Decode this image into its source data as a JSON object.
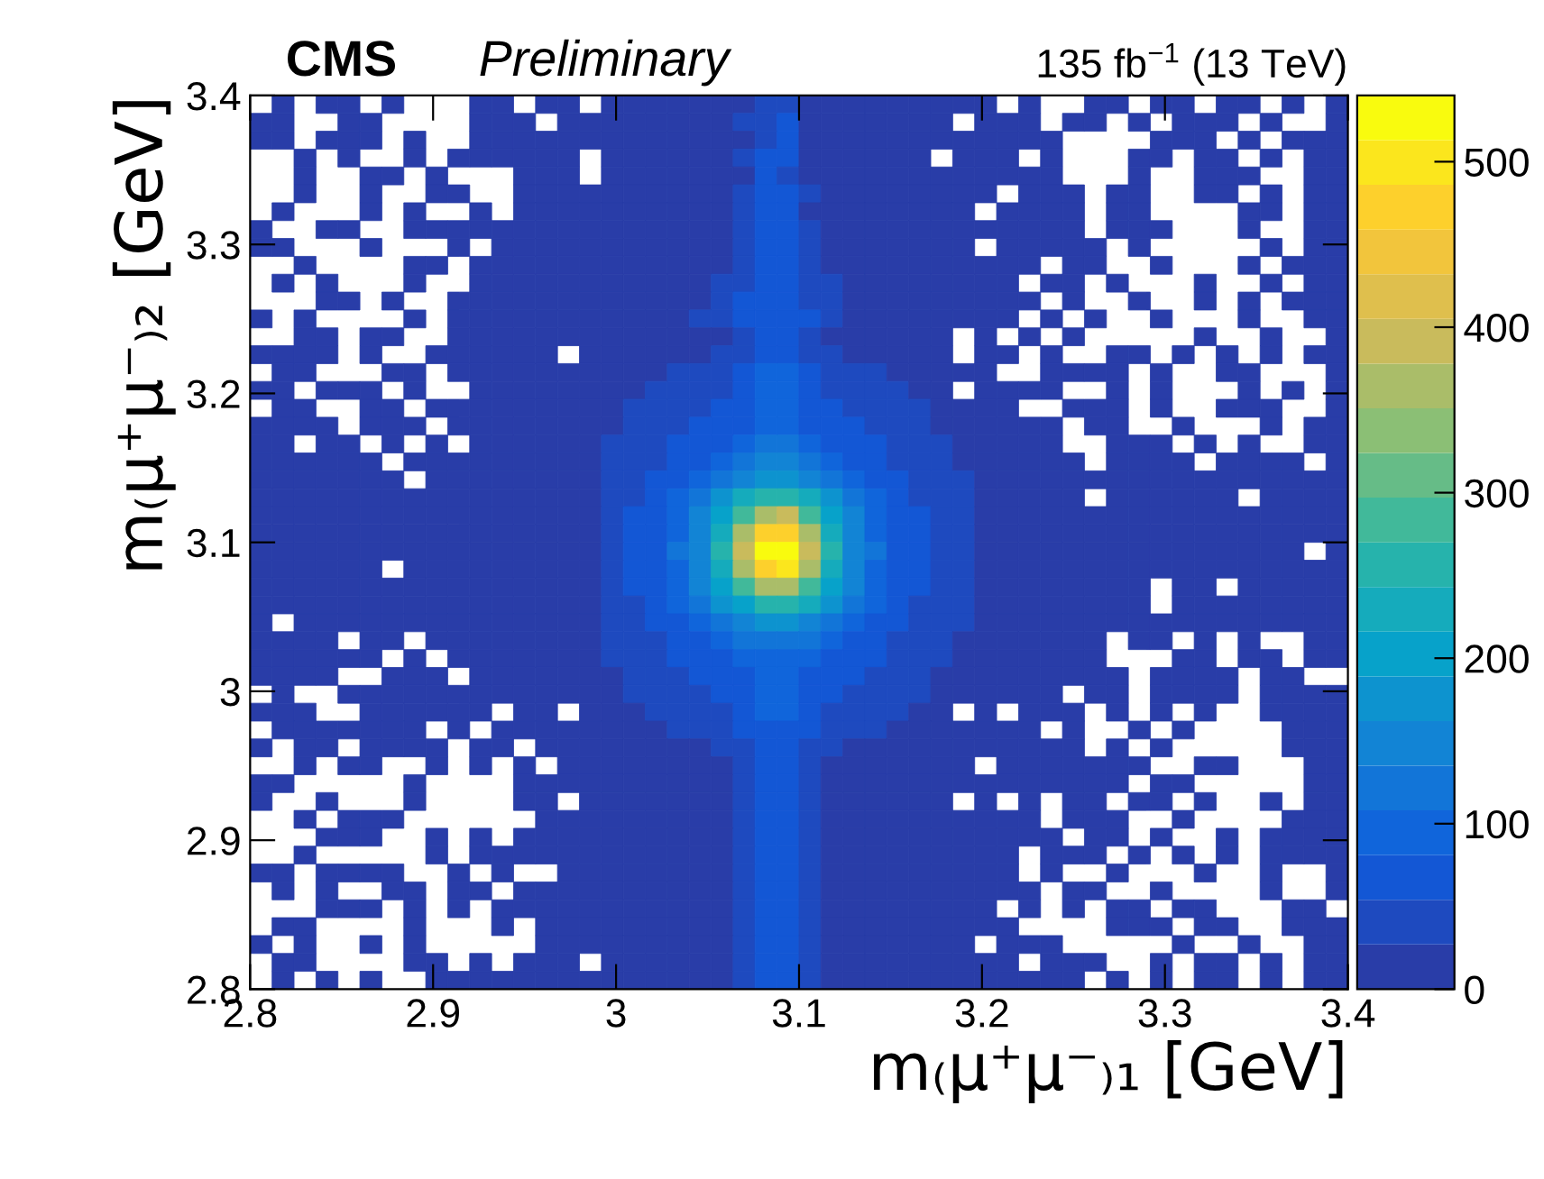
{
  "chart_data": {
    "type": "heatmap",
    "title": "CMS",
    "subtitle": "Preliminary",
    "annotations": [
      "135 fb$^{−1}$ (13 TeV)"
    ],
    "xlabel": "m₍μ⁺μ⁻₎₁ [GeV]",
    "ylabel": "m₍μ⁺μ⁻₎₂ [GeV]",
    "xlim": [
      2.8,
      3.4
    ],
    "ylim": [
      2.8,
      3.4
    ],
    "xticks": [
      2.8,
      2.9,
      3,
      3.1,
      3.2,
      3.3,
      3.4
    ],
    "yticks": [
      2.8,
      2.9,
      3,
      3.1,
      3.2,
      3.3,
      3.4
    ],
    "clim": [
      0,
      540
    ],
    "cticks": [
      0,
      100,
      200,
      300,
      400,
      500
    ],
    "grid": false,
    "cells": [
      [
        null,
        10,
        null,
        10,
        10,
        null,
        10,
        null,
        null,
        null,
        10,
        10,
        null,
        10,
        10,
        null,
        10,
        10,
        10,
        10,
        10,
        10,
        10,
        40,
        45,
        10,
        10,
        10,
        10,
        10,
        10,
        10,
        10,
        10,
        null,
        10,
        null,
        null,
        10,
        10,
        null,
        10,
        10,
        null,
        10,
        10,
        null,
        10,
        null,
        10
      ],
      [
        10,
        10,
        null,
        null,
        10,
        10,
        null,
        null,
        null,
        null,
        10,
        10,
        10,
        null,
        10,
        10,
        10,
        10,
        10,
        10,
        10,
        10,
        30,
        50,
        60,
        10,
        10,
        10,
        10,
        10,
        10,
        10,
        null,
        10,
        10,
        10,
        null,
        10,
        10,
        null,
        10,
        null,
        10,
        10,
        10,
        null,
        10,
        null,
        null,
        10
      ],
      [
        10,
        10,
        null,
        10,
        10,
        10,
        null,
        10,
        null,
        null,
        10,
        10,
        10,
        10,
        10,
        10,
        10,
        10,
        10,
        10,
        10,
        10,
        10,
        45,
        55,
        10,
        10,
        10,
        10,
        10,
        10,
        10,
        10,
        10,
        10,
        10,
        10,
        null,
        null,
        null,
        null,
        10,
        10,
        10,
        null,
        10,
        null,
        10,
        10,
        10
      ],
      [
        null,
        null,
        10,
        null,
        10,
        null,
        null,
        10,
        null,
        10,
        10,
        10,
        10,
        10,
        10,
        null,
        10,
        10,
        10,
        10,
        10,
        10,
        30,
        55,
        55,
        10,
        10,
        10,
        10,
        10,
        10,
        null,
        10,
        10,
        10,
        null,
        10,
        null,
        null,
        null,
        10,
        10,
        null,
        10,
        10,
        null,
        10,
        null,
        10,
        10
      ],
      [
        null,
        null,
        10,
        null,
        null,
        10,
        10,
        null,
        10,
        null,
        null,
        null,
        10,
        10,
        10,
        null,
        10,
        10,
        10,
        10,
        10,
        10,
        10,
        55,
        50,
        10,
        10,
        10,
        10,
        10,
        10,
        10,
        10,
        10,
        10,
        10,
        10,
        null,
        null,
        null,
        10,
        null,
        null,
        10,
        10,
        10,
        null,
        null,
        10,
        10
      ],
      [
        null,
        null,
        10,
        null,
        null,
        10,
        null,
        null,
        10,
        10,
        null,
        null,
        10,
        10,
        10,
        10,
        10,
        10,
        10,
        10,
        10,
        10,
        35,
        60,
        60,
        30,
        10,
        10,
        10,
        10,
        10,
        10,
        10,
        10,
        null,
        10,
        10,
        10,
        null,
        10,
        10,
        null,
        null,
        10,
        10,
        null,
        10,
        null,
        10,
        10
      ],
      [
        null,
        10,
        null,
        null,
        null,
        10,
        null,
        10,
        null,
        null,
        10,
        null,
        10,
        10,
        10,
        10,
        10,
        10,
        10,
        10,
        10,
        10,
        30,
        55,
        60,
        10,
        10,
        10,
        10,
        10,
        10,
        10,
        10,
        null,
        10,
        10,
        10,
        10,
        null,
        10,
        10,
        null,
        null,
        null,
        null,
        10,
        10,
        null,
        10,
        10
      ],
      [
        10,
        null,
        null,
        10,
        10,
        null,
        null,
        10,
        10,
        10,
        10,
        10,
        10,
        10,
        10,
        10,
        10,
        10,
        10,
        10,
        10,
        10,
        40,
        60,
        60,
        35,
        10,
        10,
        10,
        10,
        10,
        10,
        10,
        10,
        10,
        10,
        10,
        10,
        null,
        10,
        10,
        10,
        null,
        null,
        null,
        10,
        null,
        null,
        10,
        10
      ],
      [
        10,
        10,
        null,
        null,
        null,
        10,
        null,
        null,
        null,
        10,
        null,
        10,
        10,
        10,
        10,
        10,
        10,
        10,
        10,
        10,
        10,
        10,
        40,
        65,
        65,
        40,
        10,
        10,
        10,
        10,
        10,
        10,
        10,
        null,
        10,
        10,
        10,
        10,
        10,
        null,
        10,
        null,
        null,
        null,
        null,
        null,
        10,
        null,
        10,
        10
      ],
      [
        null,
        null,
        10,
        null,
        null,
        null,
        null,
        10,
        10,
        null,
        10,
        10,
        10,
        10,
        10,
        10,
        10,
        10,
        10,
        10,
        10,
        10,
        45,
        70,
        70,
        40,
        10,
        10,
        10,
        10,
        10,
        10,
        10,
        10,
        10,
        10,
        null,
        10,
        10,
        null,
        null,
        10,
        null,
        null,
        null,
        10,
        null,
        10,
        10,
        10
      ],
      [
        null,
        10,
        null,
        10,
        null,
        null,
        null,
        10,
        null,
        null,
        10,
        10,
        10,
        10,
        10,
        10,
        10,
        10,
        10,
        10,
        10,
        30,
        50,
        70,
        70,
        45,
        30,
        10,
        10,
        10,
        10,
        10,
        10,
        10,
        10,
        null,
        10,
        10,
        null,
        10,
        null,
        null,
        null,
        10,
        null,
        null,
        10,
        null,
        10,
        10
      ],
      [
        null,
        null,
        null,
        10,
        10,
        null,
        10,
        null,
        null,
        10,
        10,
        10,
        10,
        10,
        10,
        10,
        10,
        10,
        10,
        10,
        10,
        35,
        55,
        75,
        75,
        50,
        30,
        10,
        10,
        10,
        10,
        10,
        10,
        10,
        10,
        10,
        null,
        10,
        null,
        null,
        10,
        null,
        null,
        10,
        null,
        10,
        null,
        10,
        10,
        10
      ],
      [
        10,
        null,
        10,
        null,
        null,
        null,
        null,
        10,
        null,
        10,
        10,
        10,
        10,
        10,
        10,
        10,
        10,
        10,
        10,
        10,
        30,
        40,
        60,
        80,
        80,
        55,
        35,
        10,
        10,
        10,
        10,
        10,
        10,
        10,
        10,
        null,
        10,
        null,
        10,
        null,
        null,
        10,
        null,
        null,
        null,
        10,
        null,
        null,
        10,
        10
      ],
      [
        null,
        null,
        10,
        10,
        null,
        10,
        10,
        null,
        null,
        10,
        10,
        10,
        10,
        10,
        10,
        10,
        10,
        10,
        10,
        10,
        10,
        25,
        45,
        75,
        75,
        45,
        25,
        10,
        10,
        10,
        10,
        10,
        null,
        10,
        null,
        10,
        null,
        10,
        null,
        null,
        null,
        null,
        null,
        10,
        null,
        null,
        10,
        null,
        null,
        10
      ],
      [
        10,
        10,
        10,
        10,
        null,
        10,
        null,
        null,
        10,
        10,
        10,
        10,
        10,
        10,
        null,
        10,
        10,
        10,
        10,
        20,
        25,
        30,
        50,
        80,
        80,
        50,
        30,
        25,
        20,
        10,
        10,
        10,
        null,
        10,
        10,
        null,
        10,
        null,
        null,
        10,
        10,
        null,
        10,
        null,
        10,
        null,
        10,
        null,
        10,
        10
      ],
      [
        null,
        10,
        10,
        null,
        null,
        null,
        10,
        10,
        null,
        10,
        10,
        10,
        10,
        10,
        10,
        10,
        10,
        10,
        22,
        28,
        33,
        38,
        55,
        85,
        85,
        55,
        38,
        33,
        28,
        22,
        10,
        10,
        10,
        10,
        null,
        null,
        10,
        10,
        10,
        10,
        null,
        10,
        null,
        null,
        10,
        10,
        null,
        null,
        null,
        10
      ],
      [
        10,
        10,
        null,
        10,
        10,
        10,
        null,
        10,
        null,
        null,
        10,
        10,
        10,
        10,
        10,
        10,
        10,
        22,
        30,
        35,
        40,
        45,
        60,
        90,
        90,
        60,
        45,
        40,
        35,
        30,
        22,
        10,
        null,
        10,
        10,
        10,
        10,
        null,
        null,
        10,
        null,
        10,
        null,
        null,
        null,
        10,
        null,
        10,
        null,
        10
      ],
      [
        null,
        10,
        10,
        null,
        null,
        10,
        10,
        null,
        10,
        10,
        10,
        10,
        10,
        10,
        10,
        10,
        20,
        29,
        35,
        41,
        47,
        55,
        70,
        95,
        95,
        70,
        55,
        47,
        41,
        35,
        29,
        20,
        10,
        10,
        10,
        null,
        null,
        10,
        10,
        10,
        null,
        10,
        null,
        null,
        10,
        10,
        10,
        null,
        null,
        10
      ],
      [
        10,
        10,
        10,
        10,
        null,
        10,
        10,
        10,
        null,
        10,
        10,
        10,
        10,
        10,
        10,
        10,
        26,
        34,
        41,
        48,
        56,
        65,
        80,
        100,
        100,
        80,
        65,
        56,
        48,
        41,
        34,
        26,
        10,
        10,
        10,
        10,
        10,
        null,
        10,
        10,
        null,
        null,
        10,
        null,
        null,
        null,
        10,
        null,
        10,
        10
      ],
      [
        10,
        10,
        null,
        10,
        10,
        null,
        10,
        null,
        10,
        null,
        10,
        10,
        10,
        10,
        10,
        10,
        31,
        39,
        47,
        56,
        66,
        80,
        95,
        110,
        110,
        95,
        80,
        66,
        56,
        47,
        39,
        31,
        22,
        10,
        10,
        10,
        10,
        null,
        null,
        10,
        10,
        10,
        null,
        10,
        null,
        10,
        null,
        null,
        10,
        10
      ],
      [
        10,
        10,
        10,
        10,
        10,
        10,
        null,
        10,
        10,
        10,
        10,
        10,
        10,
        10,
        10,
        10,
        35,
        45,
        52,
        65,
        80,
        100,
        120,
        135,
        135,
        120,
        100,
        80,
        65,
        52,
        45,
        35,
        26,
        10,
        10,
        10,
        10,
        10,
        null,
        10,
        10,
        10,
        10,
        null,
        10,
        10,
        10,
        10,
        null,
        10
      ],
      [
        10,
        10,
        10,
        10,
        10,
        10,
        10,
        null,
        10,
        10,
        10,
        10,
        10,
        10,
        10,
        10,
        38,
        48,
        59,
        75,
        100,
        128,
        160,
        180,
        180,
        160,
        128,
        100,
        75,
        59,
        48,
        38,
        30,
        10,
        10,
        10,
        10,
        10,
        10,
        10,
        10,
        10,
        10,
        10,
        10,
        10,
        10,
        10,
        10,
        10
      ],
      [
        10,
        10,
        10,
        10,
        10,
        10,
        10,
        10,
        10,
        10,
        10,
        10,
        10,
        10,
        10,
        10,
        41,
        51,
        65,
        88,
        120,
        165,
        220,
        255,
        260,
        220,
        165,
        120,
        88,
        65,
        51,
        41,
        32,
        10,
        10,
        10,
        10,
        10,
        null,
        10,
        10,
        10,
        10,
        10,
        10,
        null,
        10,
        10,
        10,
        10
      ],
      [
        10,
        10,
        10,
        10,
        10,
        10,
        10,
        10,
        10,
        10,
        10,
        10,
        10,
        10,
        10,
        10,
        43,
        55,
        70,
        100,
        140,
        205,
        295,
        370,
        380,
        295,
        205,
        140,
        100,
        70,
        55,
        43,
        34,
        10,
        10,
        10,
        10,
        10,
        10,
        10,
        10,
        10,
        10,
        10,
        10,
        10,
        10,
        10,
        10,
        10
      ],
      [
        10,
        10,
        10,
        10,
        10,
        10,
        10,
        10,
        10,
        10,
        10,
        10,
        10,
        10,
        10,
        10,
        45,
        56,
        75,
        105,
        155,
        240,
        365,
        485,
        470,
        365,
        240,
        155,
        105,
        75,
        56,
        45,
        35,
        10,
        10,
        10,
        10,
        10,
        10,
        10,
        10,
        10,
        10,
        10,
        10,
        10,
        10,
        10,
        10,
        10
      ],
      [
        10,
        10,
        10,
        10,
        10,
        10,
        10,
        10,
        10,
        10,
        10,
        10,
        10,
        10,
        10,
        10,
        45,
        57,
        75,
        110,
        160,
        250,
        400,
        530,
        540,
        400,
        250,
        160,
        110,
        75,
        57,
        45,
        35,
        10,
        10,
        10,
        10,
        10,
        10,
        10,
        10,
        10,
        10,
        10,
        10,
        10,
        10,
        10,
        null,
        10
      ],
      [
        10,
        10,
        10,
        10,
        10,
        10,
        null,
        10,
        10,
        10,
        10,
        10,
        10,
        10,
        10,
        10,
        45,
        56,
        75,
        105,
        155,
        240,
        365,
        480,
        500,
        360,
        240,
        155,
        105,
        75,
        56,
        45,
        35,
        10,
        10,
        10,
        10,
        10,
        10,
        10,
        10,
        10,
        10,
        10,
        10,
        10,
        10,
        10,
        10,
        10
      ],
      [
        10,
        10,
        10,
        10,
        10,
        10,
        10,
        10,
        10,
        10,
        10,
        10,
        10,
        10,
        10,
        10,
        43,
        55,
        70,
        100,
        140,
        205,
        290,
        360,
        370,
        295,
        205,
        140,
        100,
        70,
        55,
        43,
        34,
        10,
        10,
        10,
        10,
        10,
        10,
        10,
        10,
        null,
        10,
        10,
        null,
        10,
        10,
        10,
        10,
        10
      ],
      [
        10,
        10,
        10,
        10,
        10,
        10,
        10,
        10,
        10,
        10,
        10,
        10,
        10,
        10,
        10,
        10,
        41,
        51,
        65,
        88,
        120,
        165,
        215,
        250,
        255,
        220,
        165,
        120,
        88,
        65,
        51,
        41,
        32,
        10,
        10,
        10,
        10,
        10,
        10,
        10,
        10,
        null,
        10,
        10,
        10,
        10,
        10,
        10,
        10,
        10
      ],
      [
        10,
        null,
        10,
        10,
        10,
        10,
        10,
        10,
        10,
        10,
        10,
        10,
        10,
        10,
        10,
        10,
        38,
        48,
        59,
        75,
        100,
        128,
        160,
        175,
        185,
        160,
        128,
        100,
        75,
        59,
        48,
        38,
        30,
        10,
        10,
        10,
        10,
        10,
        10,
        10,
        10,
        10,
        10,
        10,
        10,
        10,
        10,
        10,
        10,
        10
      ],
      [
        10,
        10,
        10,
        10,
        null,
        10,
        10,
        null,
        10,
        10,
        10,
        10,
        10,
        10,
        10,
        10,
        35,
        45,
        52,
        65,
        80,
        100,
        120,
        130,
        130,
        120,
        100,
        80,
        65,
        52,
        45,
        35,
        26,
        10,
        10,
        10,
        10,
        10,
        10,
        null,
        10,
        10,
        null,
        10,
        null,
        10,
        null,
        null,
        10,
        10
      ],
      [
        10,
        10,
        10,
        10,
        10,
        10,
        null,
        10,
        null,
        10,
        10,
        10,
        10,
        10,
        10,
        10,
        31,
        39,
        47,
        56,
        66,
        80,
        95,
        105,
        105,
        95,
        80,
        66,
        56,
        47,
        39,
        31,
        22,
        10,
        10,
        10,
        10,
        10,
        10,
        null,
        null,
        null,
        10,
        10,
        null,
        10,
        10,
        null,
        10,
        10
      ],
      [
        10,
        10,
        10,
        10,
        null,
        null,
        10,
        10,
        10,
        null,
        10,
        10,
        10,
        10,
        10,
        10,
        26,
        34,
        41,
        48,
        56,
        65,
        80,
        95,
        95,
        80,
        65,
        56,
        48,
        41,
        34,
        26,
        10,
        10,
        10,
        10,
        10,
        10,
        10,
        10,
        null,
        10,
        10,
        10,
        10,
        null,
        10,
        10,
        null,
        null
      ],
      [
        null,
        10,
        null,
        null,
        10,
        10,
        10,
        10,
        10,
        10,
        10,
        10,
        10,
        10,
        10,
        10,
        20,
        29,
        35,
        41,
        47,
        55,
        70,
        90,
        90,
        70,
        55,
        47,
        41,
        35,
        29,
        20,
        10,
        10,
        10,
        10,
        10,
        null,
        10,
        10,
        null,
        10,
        10,
        10,
        10,
        null,
        10,
        10,
        10,
        10
      ],
      [
        10,
        10,
        10,
        null,
        null,
        10,
        10,
        10,
        10,
        10,
        10,
        null,
        10,
        10,
        null,
        10,
        10,
        22,
        30,
        35,
        40,
        45,
        60,
        85,
        85,
        60,
        45,
        40,
        35,
        30,
        22,
        10,
        null,
        10,
        null,
        10,
        10,
        10,
        null,
        10,
        null,
        10,
        null,
        10,
        null,
        null,
        10,
        10,
        10,
        10
      ],
      [
        null,
        10,
        10,
        10,
        10,
        10,
        10,
        10,
        null,
        10,
        null,
        10,
        10,
        10,
        10,
        10,
        10,
        10,
        22,
        28,
        33,
        38,
        55,
        80,
        80,
        55,
        38,
        33,
        28,
        22,
        10,
        10,
        10,
        10,
        10,
        10,
        null,
        10,
        null,
        null,
        10,
        null,
        10,
        null,
        null,
        null,
        null,
        10,
        10,
        10
      ],
      [
        10,
        null,
        10,
        10,
        null,
        10,
        10,
        10,
        10,
        null,
        10,
        10,
        null,
        10,
        10,
        10,
        10,
        10,
        10,
        20,
        25,
        30,
        50,
        75,
        75,
        50,
        30,
        25,
        20,
        10,
        10,
        10,
        10,
        10,
        10,
        10,
        10,
        10,
        null,
        10,
        null,
        10,
        null,
        null,
        null,
        null,
        null,
        10,
        10,
        10
      ],
      [
        null,
        null,
        10,
        null,
        10,
        10,
        null,
        null,
        10,
        null,
        10,
        null,
        10,
        null,
        10,
        10,
        10,
        10,
        10,
        10,
        10,
        25,
        45,
        70,
        70,
        45,
        25,
        10,
        10,
        10,
        10,
        10,
        10,
        null,
        10,
        10,
        10,
        10,
        10,
        10,
        10,
        null,
        null,
        10,
        10,
        null,
        null,
        null,
        10,
        10
      ],
      [
        10,
        10,
        null,
        null,
        null,
        null,
        null,
        10,
        null,
        null,
        null,
        null,
        10,
        10,
        10,
        10,
        10,
        10,
        10,
        10,
        10,
        10,
        40,
        60,
        60,
        40,
        10,
        10,
        10,
        10,
        10,
        10,
        10,
        10,
        10,
        10,
        10,
        10,
        10,
        10,
        null,
        10,
        10,
        null,
        null,
        null,
        null,
        null,
        10,
        10
      ],
      [
        10,
        null,
        null,
        10,
        null,
        null,
        null,
        10,
        null,
        null,
        null,
        null,
        10,
        10,
        null,
        10,
        10,
        10,
        10,
        10,
        10,
        10,
        40,
        60,
        60,
        40,
        10,
        10,
        10,
        10,
        10,
        10,
        null,
        10,
        null,
        10,
        null,
        10,
        10,
        null,
        10,
        10,
        null,
        10,
        null,
        null,
        10,
        null,
        10,
        10
      ],
      [
        null,
        null,
        10,
        null,
        10,
        10,
        10,
        null,
        null,
        null,
        null,
        null,
        null,
        10,
        10,
        10,
        10,
        10,
        10,
        10,
        10,
        10,
        40,
        60,
        60,
        40,
        10,
        10,
        10,
        10,
        10,
        10,
        10,
        10,
        10,
        10,
        null,
        10,
        10,
        10,
        null,
        null,
        10,
        null,
        null,
        null,
        null,
        10,
        10,
        10
      ],
      [
        null,
        null,
        null,
        10,
        10,
        10,
        null,
        null,
        10,
        null,
        10,
        null,
        10,
        10,
        10,
        10,
        10,
        10,
        10,
        10,
        10,
        10,
        40,
        60,
        60,
        40,
        10,
        10,
        10,
        10,
        10,
        10,
        10,
        10,
        10,
        10,
        10,
        null,
        10,
        10,
        null,
        10,
        null,
        null,
        10,
        null,
        10,
        10,
        10,
        10
      ],
      [
        null,
        null,
        10,
        null,
        null,
        null,
        null,
        null,
        10,
        null,
        10,
        10,
        10,
        10,
        10,
        10,
        10,
        10,
        10,
        10,
        10,
        10,
        40,
        60,
        60,
        40,
        10,
        10,
        10,
        10,
        10,
        10,
        10,
        10,
        10,
        null,
        10,
        10,
        10,
        null,
        10,
        null,
        10,
        null,
        10,
        null,
        10,
        10,
        10,
        10
      ],
      [
        10,
        10,
        null,
        10,
        10,
        10,
        10,
        null,
        null,
        10,
        null,
        10,
        null,
        null,
        10,
        10,
        10,
        10,
        10,
        10,
        10,
        10,
        40,
        60,
        60,
        40,
        10,
        10,
        10,
        10,
        10,
        10,
        10,
        10,
        10,
        null,
        10,
        null,
        null,
        10,
        null,
        null,
        null,
        10,
        null,
        null,
        10,
        null,
        null,
        10
      ],
      [
        null,
        10,
        null,
        10,
        null,
        null,
        10,
        10,
        null,
        10,
        10,
        null,
        10,
        10,
        10,
        10,
        10,
        10,
        10,
        10,
        10,
        10,
        40,
        60,
        60,
        40,
        10,
        10,
        10,
        10,
        10,
        10,
        10,
        10,
        10,
        10,
        null,
        10,
        10,
        null,
        null,
        10,
        null,
        null,
        null,
        null,
        10,
        null,
        null,
        10
      ],
      [
        null,
        null,
        null,
        10,
        10,
        10,
        null,
        10,
        null,
        10,
        null,
        10,
        10,
        10,
        10,
        10,
        10,
        10,
        10,
        10,
        10,
        10,
        40,
        60,
        60,
        40,
        10,
        10,
        10,
        10,
        10,
        10,
        10,
        10,
        null,
        10,
        null,
        10,
        null,
        10,
        10,
        null,
        10,
        10,
        null,
        null,
        null,
        10,
        10,
        null
      ],
      [
        null,
        10,
        10,
        null,
        null,
        null,
        null,
        10,
        null,
        null,
        null,
        10,
        null,
        10,
        10,
        10,
        10,
        10,
        10,
        10,
        10,
        10,
        40,
        60,
        60,
        40,
        10,
        10,
        10,
        10,
        10,
        10,
        10,
        10,
        10,
        null,
        null,
        null,
        null,
        10,
        10,
        10,
        null,
        10,
        10,
        null,
        null,
        10,
        10,
        10
      ],
      [
        10,
        null,
        10,
        null,
        null,
        10,
        null,
        10,
        null,
        null,
        null,
        null,
        null,
        10,
        10,
        10,
        10,
        10,
        10,
        10,
        10,
        10,
        40,
        60,
        60,
        40,
        10,
        10,
        10,
        10,
        10,
        10,
        10,
        null,
        10,
        10,
        10,
        null,
        null,
        null,
        null,
        null,
        10,
        null,
        null,
        10,
        null,
        null,
        10,
        10
      ],
      [
        null,
        10,
        10,
        null,
        null,
        null,
        null,
        10,
        10,
        null,
        10,
        null,
        10,
        10,
        10,
        null,
        10,
        10,
        10,
        10,
        10,
        10,
        40,
        60,
        60,
        40,
        10,
        10,
        10,
        10,
        10,
        10,
        10,
        10,
        10,
        null,
        10,
        10,
        10,
        null,
        null,
        10,
        null,
        10,
        10,
        null,
        10,
        null,
        10,
        10
      ],
      [
        null,
        10,
        null,
        10,
        null,
        10,
        null,
        null,
        10,
        10,
        10,
        10,
        10,
        10,
        10,
        10,
        10,
        10,
        10,
        10,
        10,
        10,
        40,
        60,
        60,
        40,
        10,
        10,
        10,
        10,
        10,
        10,
        10,
        10,
        10,
        10,
        10,
        10,
        null,
        10,
        null,
        10,
        null,
        10,
        10,
        null,
        10,
        null,
        10,
        10
      ]
    ]
  }
}
